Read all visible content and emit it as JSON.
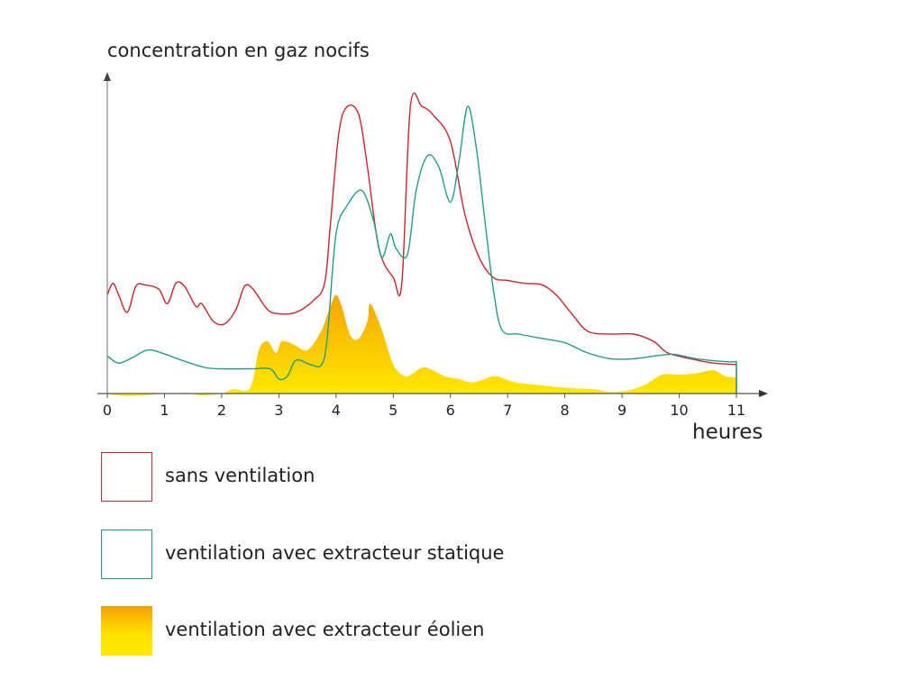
{
  "chart_data": {
    "type": "line",
    "ylabel": "concentration en gaz nocifs",
    "xlabel": "heures",
    "xlim": [
      0,
      11
    ],
    "ylim": [
      0,
      100
    ],
    "x_ticks": [
      0,
      1,
      2,
      3,
      4,
      5,
      6,
      7,
      8,
      9,
      10,
      11
    ],
    "grid": false,
    "legend_position": "bottom",
    "series": [
      {
        "name": "sans ventilation",
        "style": "line",
        "color": "#d0242b",
        "points": [
          [
            0,
            34
          ],
          [
            0.1,
            38
          ],
          [
            0.2,
            34
          ],
          [
            0.35,
            28
          ],
          [
            0.5,
            37
          ],
          [
            0.65,
            37.5
          ],
          [
            0.9,
            36
          ],
          [
            1.05,
            31
          ],
          [
            1.2,
            38
          ],
          [
            1.35,
            37
          ],
          [
            1.55,
            30
          ],
          [
            1.65,
            31
          ],
          [
            1.85,
            25
          ],
          [
            2.05,
            24
          ],
          [
            2.25,
            29
          ],
          [
            2.4,
            37
          ],
          [
            2.55,
            36
          ],
          [
            2.8,
            29
          ],
          [
            3.0,
            27.5
          ],
          [
            3.3,
            28
          ],
          [
            3.6,
            32
          ],
          [
            3.8,
            38
          ],
          [
            3.9,
            58
          ],
          [
            4.05,
            90
          ],
          [
            4.2,
            99
          ],
          [
            4.4,
            96
          ],
          [
            4.55,
            78
          ],
          [
            4.75,
            50
          ],
          [
            5.0,
            40
          ],
          [
            5.15,
            38
          ],
          [
            5.3,
            99
          ],
          [
            5.5,
            99
          ],
          [
            5.7,
            96
          ],
          [
            6.0,
            87
          ],
          [
            6.25,
            62
          ],
          [
            6.5,
            47
          ],
          [
            6.75,
            40
          ],
          [
            7.0,
            39
          ],
          [
            7.3,
            38
          ],
          [
            7.6,
            37.5
          ],
          [
            7.85,
            34
          ],
          [
            8.1,
            28
          ],
          [
            8.4,
            21.5
          ],
          [
            8.8,
            20.5
          ],
          [
            9.2,
            20.5
          ],
          [
            9.55,
            18
          ],
          [
            9.8,
            14
          ],
          [
            10.2,
            12
          ],
          [
            10.6,
            10.5
          ],
          [
            11,
            10
          ]
        ]
      },
      {
        "name": "ventilation avec extracteur statique",
        "style": "line",
        "color": "#1fa083",
        "points": [
          [
            0,
            13
          ],
          [
            0.2,
            10.5
          ],
          [
            0.45,
            12.5
          ],
          [
            0.7,
            15
          ],
          [
            0.95,
            14
          ],
          [
            1.3,
            11.5
          ],
          [
            1.7,
            9
          ],
          [
            2.0,
            8.5
          ],
          [
            2.5,
            8.5
          ],
          [
            2.85,
            8.5
          ],
          [
            3.0,
            5
          ],
          [
            3.15,
            6
          ],
          [
            3.3,
            11.5
          ],
          [
            3.55,
            10
          ],
          [
            3.75,
            10
          ],
          [
            3.85,
            20
          ],
          [
            4.0,
            55
          ],
          [
            4.2,
            65
          ],
          [
            4.45,
            70
          ],
          [
            4.65,
            60
          ],
          [
            4.8,
            47
          ],
          [
            4.95,
            55
          ],
          [
            5.05,
            50
          ],
          [
            5.25,
            48
          ],
          [
            5.4,
            70
          ],
          [
            5.6,
            82
          ],
          [
            5.8,
            78
          ],
          [
            6.0,
            66
          ],
          [
            6.15,
            80
          ],
          [
            6.3,
            99
          ],
          [
            6.45,
            85
          ],
          [
            6.6,
            60
          ],
          [
            6.75,
            36
          ],
          [
            6.9,
            22
          ],
          [
            7.2,
            20.5
          ],
          [
            7.6,
            19
          ],
          [
            8.0,
            17.5
          ],
          [
            8.4,
            14
          ],
          [
            8.8,
            12
          ],
          [
            9.2,
            12
          ],
          [
            9.6,
            13
          ],
          [
            9.9,
            13.5
          ],
          [
            10.3,
            12
          ],
          [
            10.8,
            11
          ],
          [
            11,
            11
          ]
        ]
      },
      {
        "name": "ventilation avec extracteur éolien",
        "style": "area",
        "color_top": "#f5a000",
        "color_bottom": "#ffe800",
        "points": [
          [
            0,
            -0.2
          ],
          [
            0.3,
            -0.8
          ],
          [
            0.6,
            -0.7
          ],
          [
            1.0,
            -0.1
          ],
          [
            1.4,
            0.2
          ],
          [
            1.65,
            -0.7
          ],
          [
            2.0,
            0
          ],
          [
            2.2,
            1.5
          ],
          [
            2.5,
            2
          ],
          [
            2.65,
            15
          ],
          [
            2.8,
            18
          ],
          [
            2.95,
            14
          ],
          [
            3.05,
            18
          ],
          [
            3.25,
            17
          ],
          [
            3.5,
            15
          ],
          [
            3.75,
            22
          ],
          [
            3.9,
            30
          ],
          [
            4.0,
            34
          ],
          [
            4.1,
            30
          ],
          [
            4.25,
            20
          ],
          [
            4.4,
            19
          ],
          [
            4.55,
            25
          ],
          [
            4.6,
            31
          ],
          [
            4.8,
            22
          ],
          [
            5.0,
            10
          ],
          [
            5.2,
            6
          ],
          [
            5.35,
            7
          ],
          [
            5.55,
            9
          ],
          [
            5.9,
            6
          ],
          [
            6.15,
            5
          ],
          [
            6.3,
            4
          ],
          [
            6.45,
            4
          ],
          [
            6.6,
            5
          ],
          [
            6.8,
            6
          ],
          [
            7.1,
            4
          ],
          [
            7.5,
            3
          ],
          [
            8.0,
            2
          ],
          [
            8.5,
            1.5
          ],
          [
            8.8,
            0.5
          ],
          [
            9.1,
            1
          ],
          [
            9.4,
            3
          ],
          [
            9.7,
            6.5
          ],
          [
            10.0,
            6.5
          ],
          [
            10.3,
            7
          ],
          [
            10.6,
            8
          ],
          [
            10.8,
            6
          ],
          [
            11,
            5.5
          ]
        ]
      }
    ]
  }
}
